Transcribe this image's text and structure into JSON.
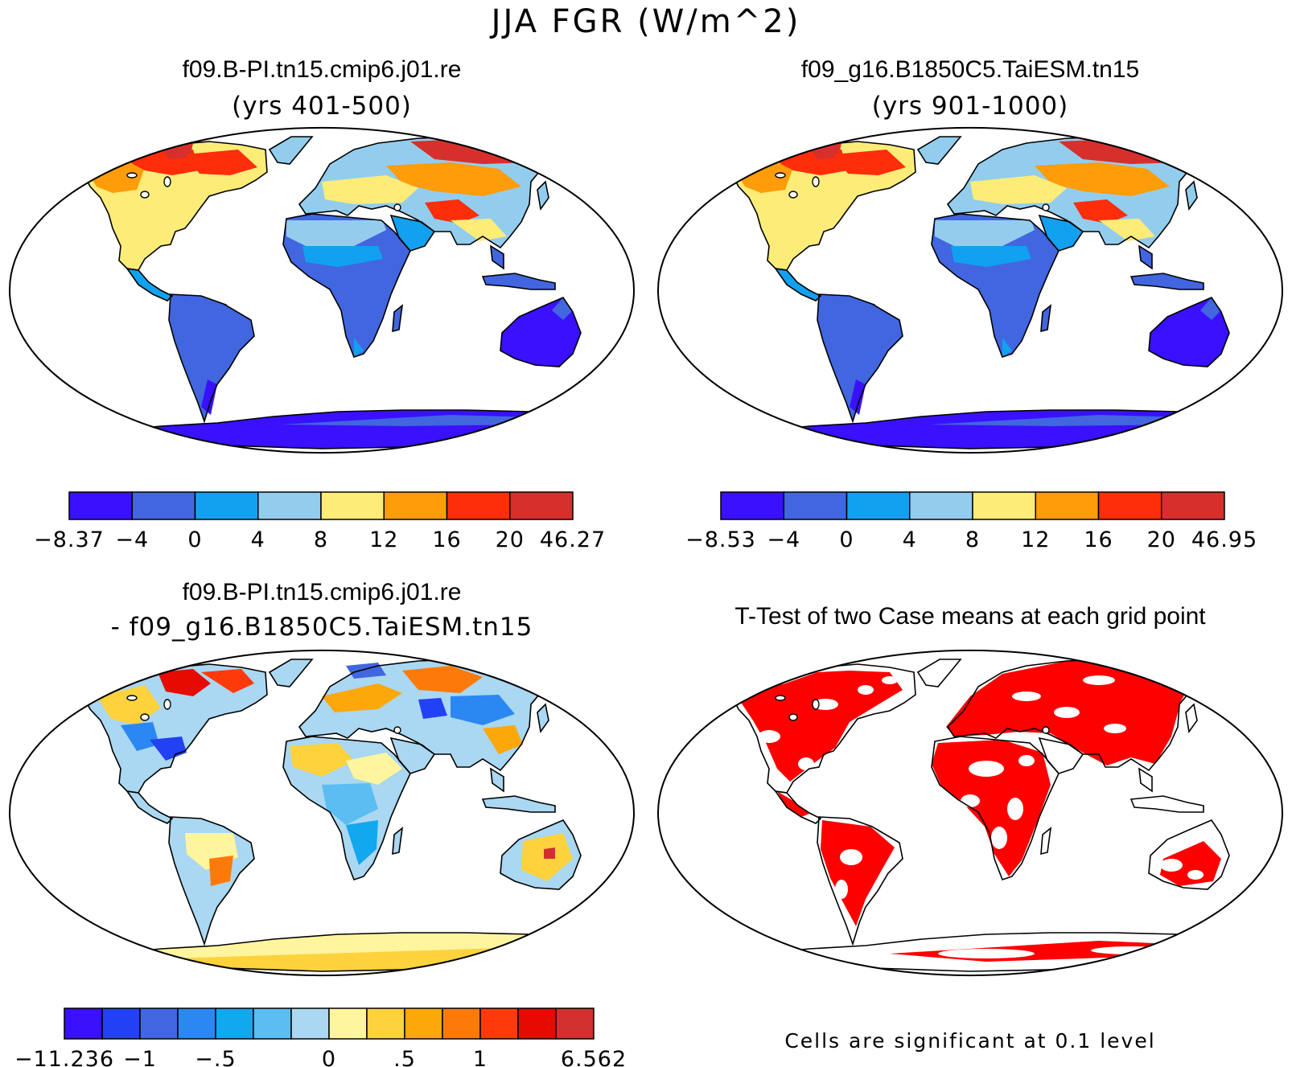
{
  "figure": {
    "title": "JJA FGR (W/m^2)"
  },
  "panels": [
    {
      "id": "case1",
      "title": "f09.B-PI.tn15.cmip6.j01.re",
      "subtitle": "(yrs 401-500)",
      "colorbar": {
        "colors": [
          "#3a10ff",
          "#4166e0",
          "#11a1f0",
          "#93cdee",
          "#fdec78",
          "#fe9c09",
          "#fe2d0a",
          "#d7302c"
        ],
        "labels": [
          "-8.37",
          "-4",
          "0",
          "4",
          "8",
          "12",
          "16",
          "20",
          "46.27"
        ]
      }
    },
    {
      "id": "case2",
      "title": "f09_g16.B1850C5.TaiESM.tn15",
      "subtitle": "(yrs 901-1000)",
      "colorbar": {
        "colors": [
          "#3a10ff",
          "#4166e0",
          "#11a1f0",
          "#93cdee",
          "#fdec78",
          "#fe9c09",
          "#fe2d0a",
          "#d7302c"
        ],
        "labels": [
          "-8.53",
          "-4",
          "0",
          "4",
          "8",
          "12",
          "16",
          "20",
          "46.95"
        ]
      }
    },
    {
      "id": "diff",
      "title": "f09.B-PI.tn15.cmip6.j01.re",
      "subtitle": "- f09_g16.B1850C5.TaiESM.tn15",
      "colorbar": {
        "colors": [
          "#3a10ff",
          "#2240f4",
          "#4166e0",
          "#2b88f2",
          "#11a8f0",
          "#5bbdf1",
          "#aad7f1",
          "#fff59e",
          "#fdd23c",
          "#fca80a",
          "#fd7a0a",
          "#fe3a0a",
          "#e60a00",
          "#d2302e"
        ],
        "labels": [
          "-11.236",
          "",
          "-1",
          "",
          "-.5",
          "",
          "",
          "0",
          "",
          ".5",
          "",
          "1",
          "",
          "",
          "6.562"
        ]
      }
    },
    {
      "id": "ttest",
      "title": "T-Test of two Case means at each grid point",
      "note": "Cells are significant at 0.1 level",
      "color": "#ff0000"
    }
  ]
}
